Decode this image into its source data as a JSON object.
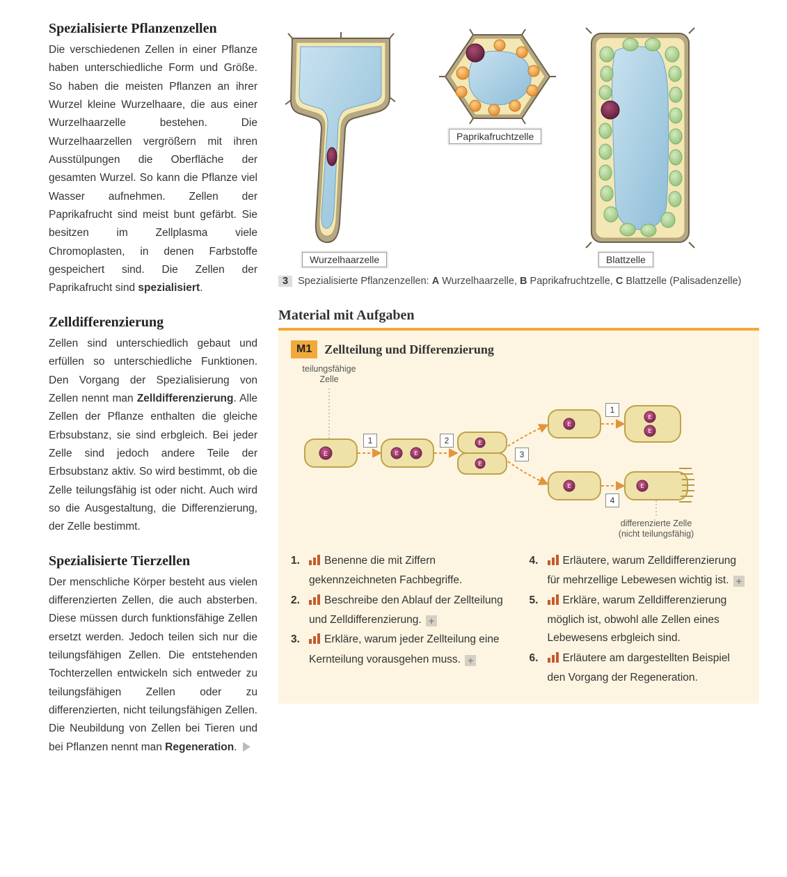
{
  "left": {
    "sec1_title": "Spezialisierte Pflanzenzellen",
    "sec1_p_a": "Die verschiedenen Zellen in einer Pflanze haben unterschiedliche Form und Größe. So haben die meisten Pflanzen an ihrer Wurzel kleine Wurzelhaare, die aus einer Wurzelhaarzelle bestehen. Die Wurzelhaarzellen vergrößern mit ihren Ausstülpungen die Oberfläche der gesamten Wurzel. So kann die Pflanze viel Wasser aufnehmen. Zellen der Paprikafrucht sind meist bunt gefärbt. Sie besitzen im Zellplasma viele Chromoplasten, in denen Farbstoffe gespeichert sind. Die Zellen der Paprikafrucht sind ",
    "sec1_bold_a": "spezialisiert",
    "sec1_p_c": ".",
    "sec2_title": "Zelldifferenzierung",
    "sec2_p_a": "Zellen sind unterschiedlich gebaut und erfüllen so unterschiedliche Funktionen. Den Vorgang der Spezialisierung von Zellen nennt man ",
    "sec2_bold_a": "Zelldifferenzierung",
    "sec2_p_b": ". Alle Zellen der Pflanze enthalten die gleiche Erbsubstanz, sie sind erbgleich. Bei jeder Zelle sind jedoch andere Teile der Erbsubstanz aktiv. So wird bestimmt, ob die Zelle teilungsfähig ist oder nicht. Auch wird so die Ausgestaltung, die Differenzierung, der Zelle bestimmt.",
    "sec3_title": "Spezialisierte Tierzellen",
    "sec3_p_a": "Der menschliche Körper besteht aus vielen differenzierten Zellen, die auch absterben. Diese müssen durch funktionsfähige Zellen ersetzt werden. Jedoch teilen sich nur die teilungsfähigen Zellen. Die entstehenden Tochterzellen entwickeln sich entweder zu teilungsfähigen Zellen oder zu differenzierten, nicht teilungsfähigen Zellen. Die Neubildung von Zellen bei Tieren und bei Pflanzen nennt man ",
    "sec3_bold_a": "Regeneration",
    "sec3_p_c": "."
  },
  "figure": {
    "label_root": "Wurzelhaarzelle",
    "label_paprika": "Paprikafruchtzelle",
    "label_leaf": "Blattzelle",
    "caption_num": "3",
    "caption_lead": "Spezialisierte Pflanzenzellen: ",
    "caption_a_b": "A",
    "caption_a_t": " Wurzelhaarzelle, ",
    "caption_b_b": "B",
    "caption_b_t": " Paprikafruchtzelle, ",
    "caption_c_b": "C",
    "caption_c_t": " Blattzelle (Palisadenzelle)",
    "colors": {
      "vacuole": "#a7cde3",
      "cytoplasm": "#f3e7b6",
      "wall": "#8a7a5a",
      "nucleus": "#7b2a4a",
      "chromoplast_fill": "#f4a94d",
      "chromoplast_stroke": "#c9781e",
      "chloroplast_fill": "#b7d9a0",
      "chloroplast_stroke": "#7faa6a"
    }
  },
  "material": {
    "section_label": "Material mit Aufgaben",
    "badge": "M1",
    "title": "Zellteilung und Differenzierung",
    "diag_label_top": "teilungsfähige\nZelle",
    "diag_label_bottom": "differenzierte Zelle\n(nicht teilungsfähig)",
    "steps": {
      "s1": "1",
      "s2": "2",
      "s3": "3",
      "s4": "4",
      "s1b": "1"
    },
    "diag_colors": {
      "cell_fill": "#eee2a8",
      "cell_stroke": "#bfa24a",
      "nucleus_fill": "#a43a6a",
      "nucleus_stroke": "#6b1f43",
      "arrow": "#e3943c",
      "membrane": "#b89a4a"
    },
    "tasks": [
      {
        "n": "1.",
        "bars": 3,
        "t": "Benenne die mit Ziffern gekennzeichneten Fachbegriffe.",
        "plus": false
      },
      {
        "n": "2.",
        "bars": 3,
        "t": "Beschreibe den Ablauf der Zellteilung und Zelldifferenzierung.",
        "plus": true
      },
      {
        "n": "3.",
        "bars": 3,
        "t": "Erkläre, warum jeder Zellteilung eine Kernteilung vorausgehen muss.",
        "plus": true
      },
      {
        "n": "4.",
        "bars": 3,
        "t": "Erläutere, warum Zelldifferenzierung für mehrzellige Lebewesen wichtig ist.",
        "plus": true
      },
      {
        "n": "5.",
        "bars": 3,
        "t": "Erkläre, warum Zelldifferenzierung möglich ist, obwohl alle Zellen eines Lebewesens erbgleich sind.",
        "plus": false
      },
      {
        "n": "6.",
        "bars": 3,
        "t": "Erläutere am dargestellten Beispiel den Vorgang der Regeneration.",
        "plus": false
      }
    ]
  }
}
